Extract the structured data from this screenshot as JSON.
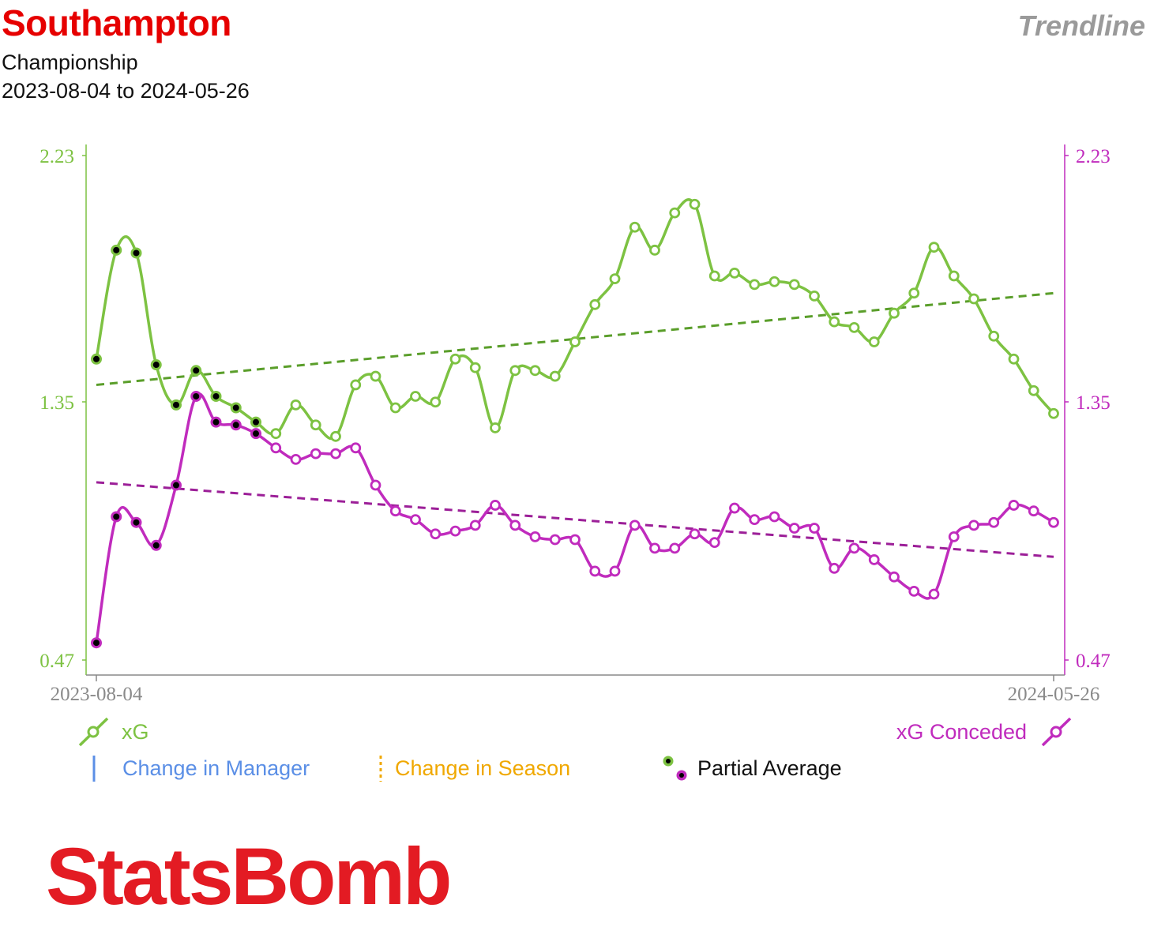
{
  "header": {
    "team": "Southampton",
    "competition": "Championship",
    "date_range": "2023-08-04 to 2024-05-26",
    "tag": "Trendline"
  },
  "logo_text": "StatsBomb",
  "colors": {
    "xg": "#7dc242",
    "xg_trend": "#5a9e2a",
    "conceded": "#c02bbd",
    "conceded_trend": "#9c1f98",
    "manager": "#5b8fe6",
    "season": "#f0a800",
    "partial_dot": "#000000"
  },
  "legend": {
    "xg": "xG",
    "conceded": "xG Conceded",
    "manager": "Change in Manager",
    "season": "Change in Season",
    "partial": "Partial Average"
  },
  "chart_data": {
    "type": "line",
    "x_start_label": "2023-08-04",
    "x_end_label": "2024-05-26",
    "y_ticks": [
      "2.23",
      "1.35",
      "0.47"
    ],
    "ylim": [
      0.47,
      2.23
    ],
    "series": [
      {
        "name": "xG",
        "values": [
          1.52,
          1.9,
          1.89,
          1.5,
          1.36,
          1.48,
          1.39,
          1.35,
          1.3,
          1.26,
          1.36,
          1.29,
          1.25,
          1.43,
          1.46,
          1.35,
          1.39,
          1.37,
          1.52,
          1.49,
          1.28,
          1.48,
          1.48,
          1.46,
          1.58,
          1.71,
          1.8,
          1.98,
          1.9,
          2.03,
          2.06,
          1.81,
          1.82,
          1.78,
          1.79,
          1.78,
          1.74,
          1.65,
          1.63,
          1.58,
          1.68,
          1.75,
          1.91,
          1.81,
          1.73,
          1.6,
          1.52,
          1.41,
          1.33
        ],
        "partial_count": 9
      },
      {
        "name": "xG Conceded",
        "values": [
          0.53,
          0.97,
          0.95,
          0.87,
          1.08,
          1.39,
          1.3,
          1.29,
          1.26,
          1.21,
          1.17,
          1.19,
          1.19,
          1.21,
          1.08,
          0.99,
          0.96,
          0.91,
          0.92,
          0.94,
          1.01,
          0.94,
          0.9,
          0.89,
          0.89,
          0.78,
          0.78,
          0.94,
          0.86,
          0.86,
          0.91,
          0.88,
          1.0,
          0.96,
          0.97,
          0.93,
          0.93,
          0.79,
          0.86,
          0.82,
          0.76,
          0.71,
          0.7,
          0.9,
          0.94,
          0.95,
          1.01,
          0.99,
          0.95
        ],
        "partial_count": 9
      }
    ],
    "trendlines": [
      {
        "series": "xG",
        "start": 1.43,
        "end": 1.75
      },
      {
        "series": "xG Conceded",
        "start": 1.09,
        "end": 0.83
      }
    ]
  }
}
